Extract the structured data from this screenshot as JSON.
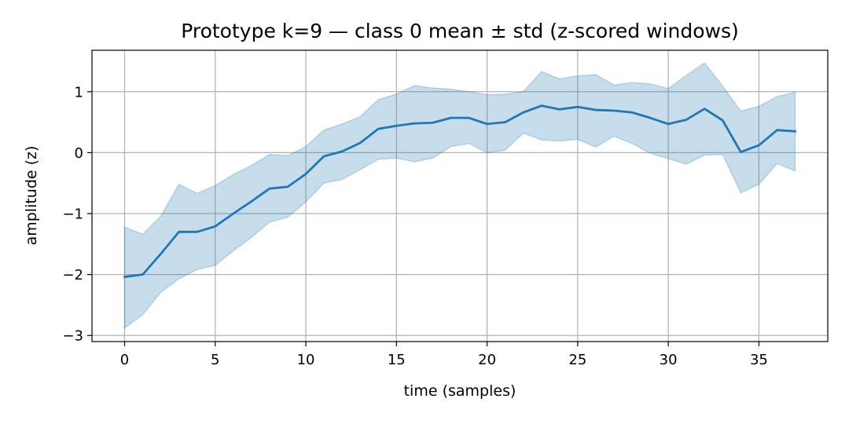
{
  "chart_data": {
    "type": "line",
    "title": "Prototype k=9 — class 0 mean ± std (z-scored windows)",
    "xlabel": "time (samples)",
    "ylabel": "amplitude (z)",
    "xlim": [
      -1.8,
      38.8
    ],
    "ylim": [
      -3.1,
      1.68
    ],
    "xticks": [
      0,
      5,
      10,
      15,
      20,
      25,
      30,
      35
    ],
    "xtick_labels": [
      "0",
      "5",
      "10",
      "15",
      "20",
      "25",
      "30",
      "35"
    ],
    "yticks": [
      -3,
      -2,
      -1,
      0,
      1
    ],
    "ytick_labels": [
      "−3",
      "−2",
      "−1",
      "0",
      "1"
    ],
    "grid": true,
    "colors": {
      "line": "#1f77b4",
      "band": "#1f77b4",
      "grid": "#b0b0b0",
      "axes": "#000000"
    },
    "x": [
      0,
      1,
      2,
      3,
      4,
      5,
      6,
      7,
      8,
      9,
      10,
      11,
      12,
      13,
      14,
      15,
      16,
      17,
      18,
      19,
      20,
      21,
      22,
      23,
      24,
      25,
      26,
      27,
      28,
      29,
      30,
      31,
      32,
      33,
      34,
      35,
      36,
      37
    ],
    "series": [
      {
        "values": [
          -2.04,
          -2.0,
          -1.66,
          -1.3,
          -1.3,
          -1.21,
          -1.0,
          -0.8,
          -0.59,
          -0.56,
          -0.35,
          -0.06,
          0.02,
          0.16,
          0.39,
          0.44,
          0.48,
          0.49,
          0.57,
          0.57,
          0.47,
          0.5,
          0.66,
          0.77,
          0.71,
          0.75,
          0.7,
          0.69,
          0.66,
          0.57,
          0.47,
          0.54,
          0.72,
          0.53,
          0.01,
          0.12,
          0.37,
          0.35
        ],
        "lower": [
          -2.88,
          -2.66,
          -2.29,
          -2.07,
          -1.92,
          -1.85,
          -1.61,
          -1.39,
          -1.14,
          -1.06,
          -0.81,
          -0.5,
          -0.44,
          -0.28,
          -0.11,
          -0.09,
          -0.15,
          -0.09,
          0.1,
          0.15,
          0.0,
          0.04,
          0.32,
          0.21,
          0.19,
          0.22,
          0.09,
          0.27,
          0.15,
          -0.01,
          -0.1,
          -0.19,
          -0.04,
          -0.03,
          -0.66,
          -0.52,
          -0.18,
          -0.3
        ],
        "upper": [
          -1.22,
          -1.34,
          -1.04,
          -0.52,
          -0.67,
          -0.54,
          -0.36,
          -0.21,
          -0.03,
          -0.05,
          0.1,
          0.37,
          0.47,
          0.59,
          0.87,
          0.96,
          1.1,
          1.06,
          1.04,
          1.0,
          0.95,
          0.96,
          1.0,
          1.33,
          1.21,
          1.26,
          1.28,
          1.11,
          1.15,
          1.13,
          1.05,
          1.27,
          1.47,
          1.09,
          0.68,
          0.76,
          0.92,
          0.99
        ]
      }
    ]
  }
}
